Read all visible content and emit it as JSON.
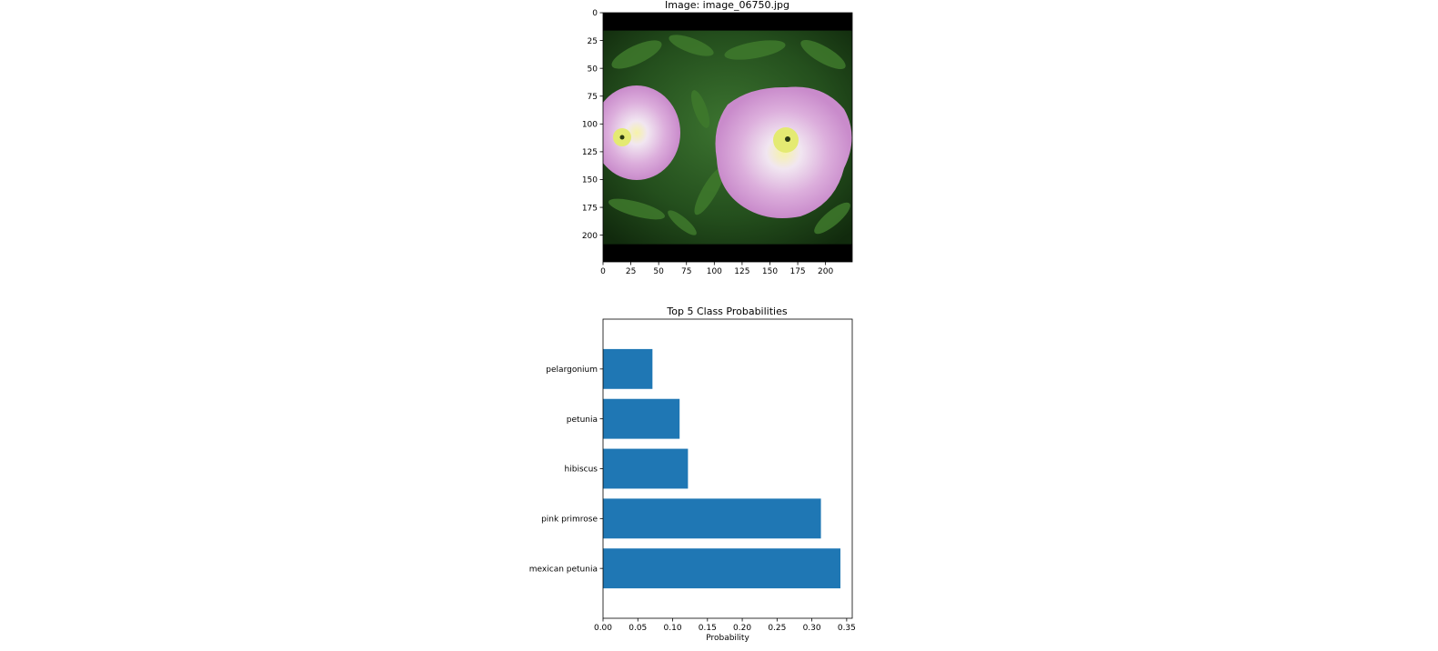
{
  "chart_data": [
    {
      "type": "image",
      "title": "Image: image_06750.jpg",
      "xlabel": "",
      "ylabel": "",
      "xlim": [
        0,
        224
      ],
      "ylim": [
        224,
        0
      ],
      "xticks": [
        0,
        25,
        50,
        75,
        100,
        125,
        150,
        175,
        200
      ],
      "yticks": [
        0,
        25,
        50,
        75,
        100,
        125,
        150,
        175,
        200
      ],
      "letterbox_rows": {
        "top": [
          0,
          16
        ],
        "bottom": [
          208,
          224
        ]
      },
      "content_description_colors": {
        "foliage": "#1f4a1a",
        "foliage_light": "#3f7a2c",
        "petal": "#d6a3d6",
        "petal_light": "#efd3ef",
        "center": "#dfe86a",
        "border": "#000000"
      }
    },
    {
      "type": "bar",
      "orientation": "horizontal",
      "title": "Top 5 Class Probabilities",
      "xlabel": "Probability",
      "ylabel": "",
      "categories": [
        "mexican petunia",
        "pink primrose",
        "hibiscus",
        "petunia",
        "pelargonium"
      ],
      "values": [
        0.341,
        0.313,
        0.122,
        0.11,
        0.071
      ],
      "xlim": [
        0,
        0.358
      ],
      "xticks": [
        0.0,
        0.05,
        0.1,
        0.15,
        0.2,
        0.25,
        0.3,
        0.35
      ],
      "xtick_labels": [
        "0.00",
        "0.05",
        "0.10",
        "0.15",
        "0.20",
        "0.25",
        "0.30",
        "0.35"
      ],
      "bar_color": "#1f77b4",
      "grid": false
    }
  ]
}
